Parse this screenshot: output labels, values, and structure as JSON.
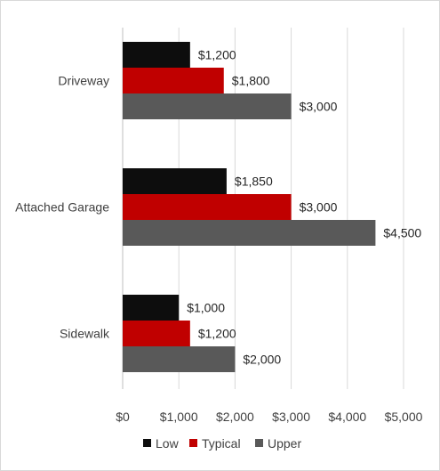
{
  "chart_data": {
    "type": "bar",
    "orientation": "horizontal",
    "categories": [
      "Driveway",
      "Attached Garage",
      "Sidewalk"
    ],
    "series": [
      {
        "name": "Low",
        "color": "#0d0d0d",
        "values": [
          1200,
          1850,
          1000
        ],
        "labels": [
          "$1,200",
          "$1,850",
          "$1,000"
        ]
      },
      {
        "name": "Typical",
        "color": "#c00000",
        "values": [
          1800,
          3000,
          1200
        ],
        "labels": [
          "$1,800",
          "$3,000",
          "$1,200"
        ]
      },
      {
        "name": "Upper",
        "color": "#595959",
        "values": [
          3000,
          4500,
          2000
        ],
        "labels": [
          "$3,000",
          "$4,500",
          "$2,000"
        ]
      }
    ],
    "xlim": [
      0,
      5000
    ],
    "xticks": [
      0,
      1000,
      2000,
      3000,
      4000,
      5000
    ],
    "xtick_labels": [
      "$0",
      "$1,000",
      "$2,000",
      "$3,000",
      "$4,000",
      "$5,000"
    ],
    "title": "",
    "xlabel": "",
    "ylabel": "",
    "grid": "vertical",
    "legend_position": "bottom"
  }
}
